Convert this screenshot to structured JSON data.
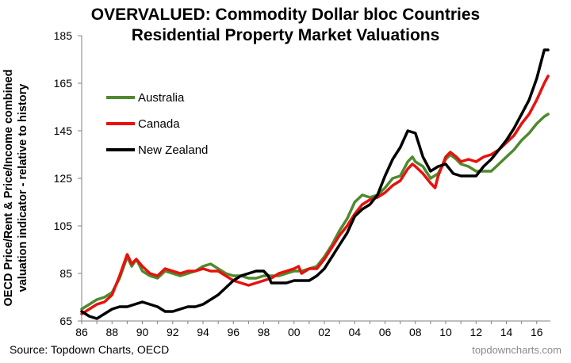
{
  "chart_data": {
    "type": "line",
    "title": "OVERVALUED: Commodity Dollar bloc Countries",
    "subtitle": "Residential Property Market Valuations",
    "ylabel_line1": "OECD Price/Rent & Price/Income combined",
    "ylabel_line2": "valuation indicator - relative to history",
    "xlabel": "",
    "ylim": [
      65,
      185
    ],
    "yticks": [
      "65",
      "85",
      "105",
      "125",
      "145",
      "165",
      "185"
    ],
    "xlim": [
      1986,
      2016.9
    ],
    "xtick_labels": [
      "86",
      "88",
      "90",
      "92",
      "94",
      "96",
      "98",
      "00",
      "02",
      "04",
      "06",
      "08",
      "10",
      "12",
      "14",
      "16"
    ],
    "grid": false,
    "legend_position": "top-left",
    "series": [
      {
        "name": "Australia",
        "color": "#4f8a2e",
        "points": [
          [
            1986,
            70
          ],
          [
            1986.5,
            72
          ],
          [
            1987,
            74
          ],
          [
            1987.5,
            75
          ],
          [
            1988,
            77
          ],
          [
            1988.5,
            83
          ],
          [
            1989,
            92
          ],
          [
            1989.3,
            88
          ],
          [
            1989.6,
            91
          ],
          [
            1990,
            86
          ],
          [
            1990.5,
            84
          ],
          [
            1991,
            83
          ],
          [
            1991.5,
            86
          ],
          [
            1992,
            85
          ],
          [
            1992.5,
            84
          ],
          [
            1993,
            85
          ],
          [
            1993.5,
            86
          ],
          [
            1994,
            88
          ],
          [
            1994.5,
            89
          ],
          [
            1995,
            87
          ],
          [
            1995.5,
            85
          ],
          [
            1996,
            84
          ],
          [
            1996.5,
            84
          ],
          [
            1997,
            83
          ],
          [
            1997.5,
            83
          ],
          [
            1998,
            84
          ],
          [
            1998.5,
            84
          ],
          [
            1999,
            84
          ],
          [
            1999.5,
            85
          ],
          [
            2000,
            86
          ],
          [
            2000.5,
            86
          ],
          [
            2001,
            87
          ],
          [
            2001.5,
            88
          ],
          [
            2002,
            92
          ],
          [
            2002.5,
            97
          ],
          [
            2003,
            103
          ],
          [
            2003.5,
            108
          ],
          [
            2004,
            115
          ],
          [
            2004.5,
            118
          ],
          [
            2005,
            117
          ],
          [
            2005.5,
            118
          ],
          [
            2006,
            121
          ],
          [
            2006.5,
            125
          ],
          [
            2007,
            126
          ],
          [
            2007.5,
            132
          ],
          [
            2007.8,
            134
          ],
          [
            2008,
            132
          ],
          [
            2008.5,
            130
          ],
          [
            2009,
            125
          ],
          [
            2009.5,
            127
          ],
          [
            2010,
            133
          ],
          [
            2010.3,
            135
          ],
          [
            2010.7,
            133
          ],
          [
            2011,
            131
          ],
          [
            2011.5,
            130
          ],
          [
            2012,
            128
          ],
          [
            2012.5,
            128
          ],
          [
            2013,
            128
          ],
          [
            2013.5,
            131
          ],
          [
            2014,
            134
          ],
          [
            2014.5,
            137
          ],
          [
            2015,
            141
          ],
          [
            2015.5,
            144
          ],
          [
            2016,
            148
          ],
          [
            2016.5,
            151
          ],
          [
            2016.75,
            152
          ]
        ]
      },
      {
        "name": "Canada",
        "color": "#e8110e",
        "points": [
          [
            1986,
            68
          ],
          [
            1986.5,
            70
          ],
          [
            1987,
            72
          ],
          [
            1987.5,
            73
          ],
          [
            1988,
            76
          ],
          [
            1988.5,
            84
          ],
          [
            1989,
            93
          ],
          [
            1989.3,
            89
          ],
          [
            1989.6,
            91
          ],
          [
            1990,
            88
          ],
          [
            1990.5,
            85
          ],
          [
            1991,
            84
          ],
          [
            1991.5,
            87
          ],
          [
            1992,
            86
          ],
          [
            1992.5,
            85
          ],
          [
            1993,
            86
          ],
          [
            1993.5,
            86
          ],
          [
            1994,
            87
          ],
          [
            1994.5,
            86
          ],
          [
            1995,
            86
          ],
          [
            1995.5,
            84
          ],
          [
            1996,
            82
          ],
          [
            1996.5,
            81
          ],
          [
            1997,
            80
          ],
          [
            1997.5,
            81
          ],
          [
            1998,
            82
          ],
          [
            1998.5,
            83
          ],
          [
            1999,
            85
          ],
          [
            1999.5,
            86
          ],
          [
            2000,
            87
          ],
          [
            2000.3,
            88
          ],
          [
            2000.5,
            85
          ],
          [
            2001,
            87
          ],
          [
            2001.5,
            87
          ],
          [
            2002,
            91
          ],
          [
            2002.5,
            96
          ],
          [
            2003,
            101
          ],
          [
            2003.5,
            105
          ],
          [
            2004,
            110
          ],
          [
            2004.5,
            114
          ],
          [
            2005,
            116
          ],
          [
            2005.5,
            117
          ],
          [
            2006,
            119
          ],
          [
            2006.5,
            122
          ],
          [
            2007,
            124
          ],
          [
            2007.5,
            129
          ],
          [
            2007.8,
            131
          ],
          [
            2008,
            130
          ],
          [
            2008.5,
            127
          ],
          [
            2009,
            123
          ],
          [
            2009.3,
            121
          ],
          [
            2009.5,
            126
          ],
          [
            2010,
            134
          ],
          [
            2010.3,
            136
          ],
          [
            2010.7,
            134
          ],
          [
            2011,
            132
          ],
          [
            2011.5,
            133
          ],
          [
            2012,
            132
          ],
          [
            2012.5,
            134
          ],
          [
            2013,
            135
          ],
          [
            2013.5,
            137
          ],
          [
            2014,
            140
          ],
          [
            2014.5,
            143
          ],
          [
            2015,
            148
          ],
          [
            2015.5,
            152
          ],
          [
            2016,
            158
          ],
          [
            2016.5,
            165
          ],
          [
            2016.75,
            168
          ]
        ]
      },
      {
        "name": "New Zealand",
        "color": "#000000",
        "points": [
          [
            1986,
            69
          ],
          [
            1986.5,
            67
          ],
          [
            1987,
            66
          ],
          [
            1987.5,
            68
          ],
          [
            1988,
            70
          ],
          [
            1988.5,
            71
          ],
          [
            1989,
            71
          ],
          [
            1989.5,
            72
          ],
          [
            1990,
            73
          ],
          [
            1990.5,
            72
          ],
          [
            1991,
            71
          ],
          [
            1991.5,
            69
          ],
          [
            1992,
            69
          ],
          [
            1992.5,
            70
          ],
          [
            1993,
            71
          ],
          [
            1993.5,
            71
          ],
          [
            1994,
            72
          ],
          [
            1994.5,
            74
          ],
          [
            1995,
            76
          ],
          [
            1995.5,
            79
          ],
          [
            1996,
            82
          ],
          [
            1996.5,
            84
          ],
          [
            1997,
            85
          ],
          [
            1997.5,
            86
          ],
          [
            1998,
            86
          ],
          [
            1998.3,
            84
          ],
          [
            1998.5,
            81
          ],
          [
            1999,
            81
          ],
          [
            1999.5,
            81
          ],
          [
            2000,
            82
          ],
          [
            2000.5,
            82
          ],
          [
            2001,
            82
          ],
          [
            2001.5,
            84
          ],
          [
            2002,
            87
          ],
          [
            2002.5,
            92
          ],
          [
            2003,
            97
          ],
          [
            2003.5,
            102
          ],
          [
            2004,
            109
          ],
          [
            2004.5,
            112
          ],
          [
            2005,
            114
          ],
          [
            2005.5,
            118
          ],
          [
            2006,
            126
          ],
          [
            2006.5,
            133
          ],
          [
            2007,
            138
          ],
          [
            2007.5,
            145
          ],
          [
            2008,
            144
          ],
          [
            2008.5,
            134
          ],
          [
            2009,
            128
          ],
          [
            2009.5,
            130
          ],
          [
            2010,
            131
          ],
          [
            2010.5,
            127
          ],
          [
            2011,
            126
          ],
          [
            2011.5,
            126
          ],
          [
            2012,
            126
          ],
          [
            2012.5,
            130
          ],
          [
            2013,
            133
          ],
          [
            2013.5,
            137
          ],
          [
            2014,
            141
          ],
          [
            2014.5,
            146
          ],
          [
            2015,
            152
          ],
          [
            2015.5,
            158
          ],
          [
            2016,
            167
          ],
          [
            2016.5,
            179
          ],
          [
            2016.75,
            179
          ]
        ]
      }
    ]
  },
  "footer": {
    "source": "Source: Topdown Charts, OECD",
    "brand": "topdowncharts.com"
  }
}
